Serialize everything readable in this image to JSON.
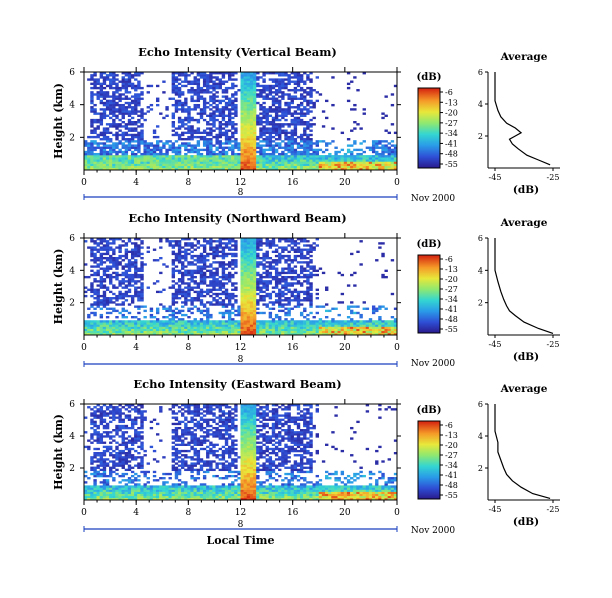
{
  "chart_data": [
    {
      "type": "heatmap",
      "title": "Echo Intensity (Vertical Beam)",
      "ylabel": "Height (km)",
      "yticks": [
        "6",
        "4",
        "2"
      ],
      "ylim": [
        0,
        6
      ],
      "xlim": [
        0,
        24
      ],
      "xticks": [
        "0",
        "4",
        "8",
        "12",
        "16",
        "20",
        "0"
      ],
      "day_label": "8",
      "date_label": "Nov 2000",
      "colorbar": {
        "unit": "(dB)",
        "ticks": [
          "-6",
          "-13",
          "-20",
          "-27",
          "-34",
          "-41",
          "-48",
          "-55"
        ],
        "range": [
          -55,
          -6
        ]
      },
      "average": {
        "title": "Average",
        "xlabel": "(dB)",
        "xticks": [
          "-45",
          "-25"
        ],
        "yticks": [
          "6",
          "4",
          "2"
        ],
        "profile": [
          [
            0.2,
            -26
          ],
          [
            0.5,
            -30
          ],
          [
            0.8,
            -34
          ],
          [
            1.2,
            -37
          ],
          [
            1.5,
            -39
          ],
          [
            1.8,
            -40
          ],
          [
            2.0,
            -38
          ],
          [
            2.2,
            -36
          ],
          [
            2.5,
            -38
          ],
          [
            2.8,
            -41
          ],
          [
            3.2,
            -43
          ],
          [
            3.6,
            -44
          ],
          [
            4.2,
            -45
          ],
          [
            5.0,
            -45
          ],
          [
            6.0,
            -45
          ]
        ]
      }
    },
    {
      "type": "heatmap",
      "title": "Echo Intensity (Northward Beam)",
      "ylabel": "Height (km)",
      "yticks": [
        "6",
        "4",
        "2"
      ],
      "ylim": [
        0,
        6
      ],
      "xlim": [
        0,
        24
      ],
      "xticks": [
        "0",
        "4",
        "8",
        "12",
        "16",
        "20",
        "0"
      ],
      "day_label": "8",
      "date_label": "Nov 2000",
      "colorbar": {
        "unit": "(dB)",
        "ticks": [
          "-6",
          "-13",
          "-20",
          "-27",
          "-34",
          "-41",
          "-48",
          "-55"
        ],
        "range": [
          -55,
          -6
        ]
      },
      "average": {
        "title": "Average",
        "xlabel": "(dB)",
        "xticks": [
          "-45",
          "-25"
        ],
        "yticks": [
          "6",
          "4",
          "2"
        ],
        "profile": [
          [
            0.1,
            -25
          ],
          [
            0.4,
            -30
          ],
          [
            0.8,
            -35
          ],
          [
            1.2,
            -38
          ],
          [
            1.5,
            -40
          ],
          [
            1.8,
            -41
          ],
          [
            2.2,
            -42
          ],
          [
            2.7,
            -43
          ],
          [
            3.3,
            -44
          ],
          [
            4.0,
            -45
          ],
          [
            5.0,
            -45
          ],
          [
            6.0,
            -45
          ]
        ]
      }
    },
    {
      "type": "heatmap",
      "title": "Echo Intensity (Eastward Beam)",
      "ylabel": "Height (km)",
      "yticks": [
        "6",
        "4",
        "2"
      ],
      "ylim": [
        0,
        6
      ],
      "xlim": [
        0,
        24
      ],
      "xticks": [
        "0",
        "4",
        "8",
        "12",
        "16",
        "20",
        "0"
      ],
      "day_label": "8",
      "date_label": "Nov 2000",
      "xlabel": "Local Time",
      "colorbar": {
        "unit": "(dB)",
        "ticks": [
          "-6",
          "-13",
          "-20",
          "-27",
          "-34",
          "-41",
          "-48",
          "-55"
        ],
        "range": [
          -55,
          -6
        ]
      },
      "average": {
        "title": "Average",
        "xlabel": "(dB)",
        "xticks": [
          "-45",
          "-25"
        ],
        "yticks": [
          "6",
          "4",
          "2"
        ],
        "profile": [
          [
            0.1,
            -26
          ],
          [
            0.4,
            -32
          ],
          [
            0.8,
            -36
          ],
          [
            1.2,
            -39
          ],
          [
            1.6,
            -41
          ],
          [
            2.0,
            -42
          ],
          [
            2.5,
            -43
          ],
          [
            3.0,
            -44
          ],
          [
            3.6,
            -44
          ],
          [
            4.3,
            -45
          ],
          [
            5.0,
            -45
          ],
          [
            6.0,
            -45
          ]
        ]
      }
    }
  ]
}
